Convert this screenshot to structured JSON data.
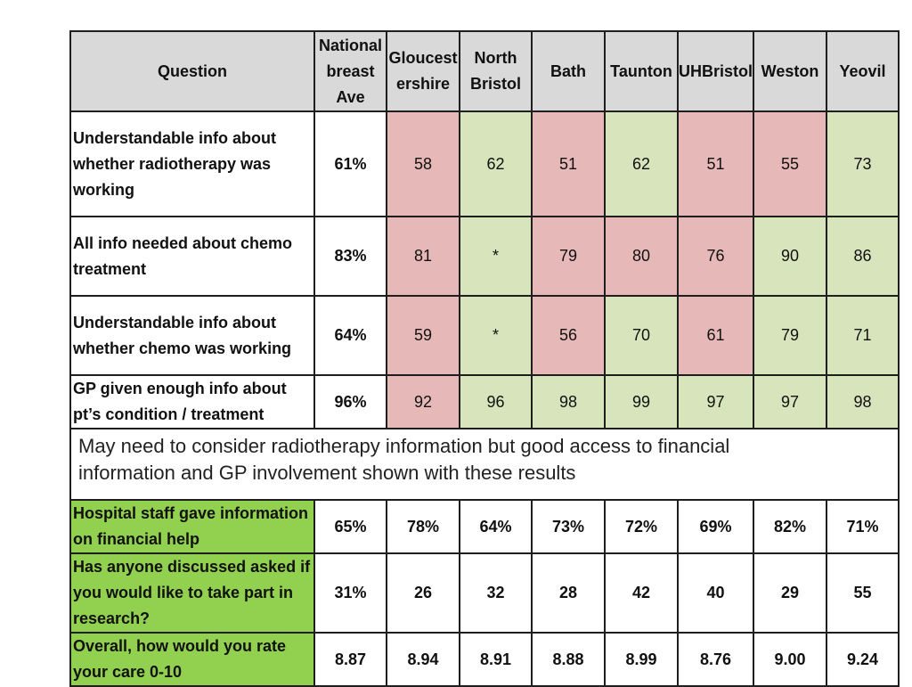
{
  "columns": {
    "question": "Question",
    "national": "National breast Ave",
    "gloucestershire": "Gloucest ershire",
    "north_bristol": "North Bristol",
    "bath": "Bath",
    "taunton": "Taunton",
    "uhbristol": "UHBristol",
    "weston": "Weston",
    "yeovil": "Yeovil"
  },
  "rows": [
    {
      "question": "Understandable info about whether radiotherapy was working",
      "national": "61%",
      "cells": [
        {
          "value": "58",
          "status": "worse"
        },
        {
          "value": "62",
          "status": "better"
        },
        {
          "value": "51",
          "status": "worse"
        },
        {
          "value": "62",
          "status": "better"
        },
        {
          "value": "51",
          "status": "worse"
        },
        {
          "value": "55",
          "status": "worse"
        },
        {
          "value": "73",
          "status": "better"
        }
      ]
    },
    {
      "question": "All info needed about chemo treatment",
      "national": "83%",
      "cells": [
        {
          "value": "81",
          "status": "worse"
        },
        {
          "value": "*",
          "status": "better"
        },
        {
          "value": "79",
          "status": "worse"
        },
        {
          "value": "80",
          "status": "worse"
        },
        {
          "value": "76",
          "status": "worse"
        },
        {
          "value": "90",
          "status": "better"
        },
        {
          "value": "86",
          "status": "better"
        }
      ]
    },
    {
      "question": "Understandable info about whether chemo was working",
      "national": "64%",
      "cells": [
        {
          "value": "59",
          "status": "worse"
        },
        {
          "value": "*",
          "status": "better"
        },
        {
          "value": "56",
          "status": "worse"
        },
        {
          "value": "70",
          "status": "better"
        },
        {
          "value": "61",
          "status": "worse"
        },
        {
          "value": "79",
          "status": "better"
        },
        {
          "value": "71",
          "status": "better"
        }
      ]
    },
    {
      "question": "GP given enough info about pt’s condition / treatment",
      "national": "96%",
      "cells": [
        {
          "value": "92",
          "status": "worse"
        },
        {
          "value": "96",
          "status": "better"
        },
        {
          "value": "98",
          "status": "better"
        },
        {
          "value": "99",
          "status": "better"
        },
        {
          "value": "97",
          "status": "better"
        },
        {
          "value": "97",
          "status": "better"
        },
        {
          "value": "98",
          "status": "better"
        }
      ]
    }
  ],
  "note": "May need to consider radiotherapy information but good access to financial information and  GP involvement shown with these results",
  "rows_lower": [
    {
      "question": "Hospital staff gave information on financial help",
      "national": "65%",
      "cells": [
        "78%",
        "64%",
        "73%",
        "72%",
        "69%",
        "82%",
        "71%"
      ]
    },
    {
      "question": "Has anyone discussed asked if you would like to take part in research?",
      "national": "31%",
      "cells": [
        "26",
        "32",
        "28",
        "42",
        "40",
        "29",
        "55"
      ]
    },
    {
      "question": "Overall, how would you rate your care 0-10",
      "national": "8.87",
      "cells": [
        "8.94",
        "8.91",
        "8.88",
        "8.99",
        "8.76",
        "9.00",
        "9.24"
      ]
    }
  ],
  "colors": {
    "header_bg": "#d9d9d9",
    "worse_bg": "#e6b9b8",
    "better_bg": "#d8e4bc",
    "lower_question_bg": "#92d050",
    "border": "#1e1e1e"
  }
}
